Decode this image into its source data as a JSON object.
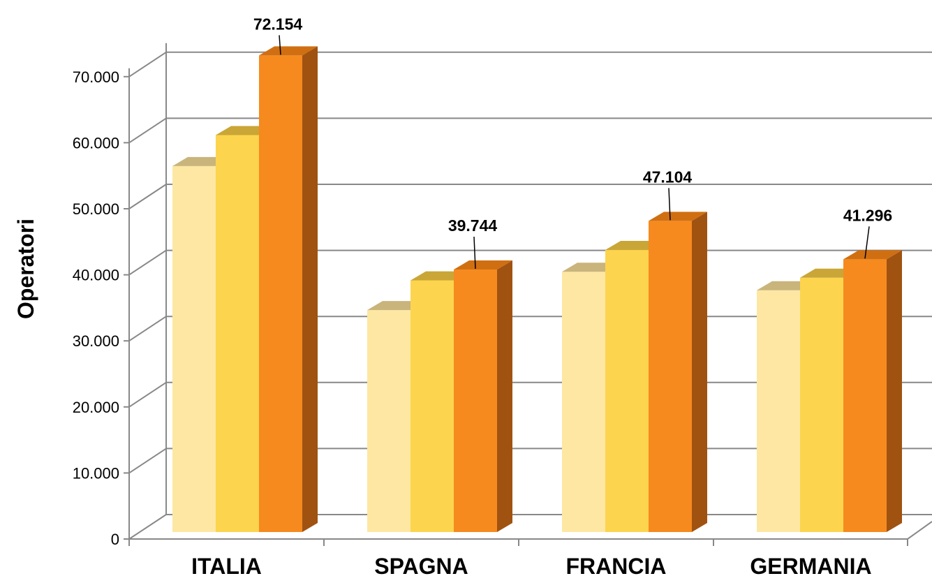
{
  "chart_data": {
    "type": "bar",
    "ylabel": "Operatori",
    "ylim": [
      0,
      70000
    ],
    "yticks": [
      0,
      10000,
      20000,
      30000,
      40000,
      50000,
      60000,
      70000
    ],
    "ytick_labels": [
      "0",
      "10.000",
      "20.000",
      "30.000",
      "40.000",
      "50.000",
      "60.000",
      "70.000"
    ],
    "categories": [
      "ITALIA",
      "SPAGNA",
      "FRANCIA",
      "GERMANIA"
    ],
    "grid": true,
    "series": [
      {
        "values": [
          55400,
          33600,
          39400,
          36600
        ],
        "color": "#FDE7A3",
        "top_color": "#C9B47B",
        "side_color": "#D6C58C"
      },
      {
        "values": [
          60100,
          38100,
          42700,
          38500
        ],
        "color": "#FDD44E",
        "top_color": "#C9A636",
        "side_color": "#D2AE3A"
      },
      {
        "values": [
          72154,
          39744,
          47104,
          41296
        ],
        "color": "#F68A1E",
        "top_color": "#D06F12",
        "side_color": "#A05211",
        "data_labels": [
          "72.154",
          "39.744",
          "47.104",
          "41.296"
        ]
      }
    ]
  }
}
